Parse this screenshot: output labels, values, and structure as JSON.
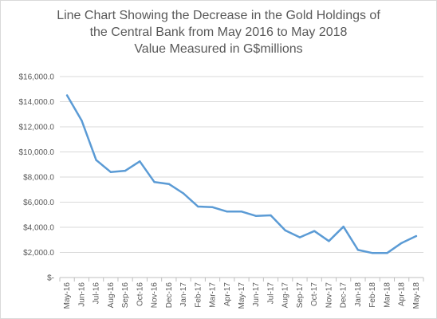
{
  "chart_data": {
    "type": "line",
    "title_lines": [
      "Line Chart Showing the Decrease in the Gold Holdings of",
      "the Central Bank from May 2016 to May 2018",
      "Value Measured in G$millions"
    ],
    "categories": [
      "May-16",
      "Jun-16",
      "Jul-16",
      "Aug-16",
      "Sep-16",
      "Oct-16",
      "Nov-16",
      "Dec-16",
      "Jan-17",
      "Feb-17",
      "Mar-17",
      "Apr-17",
      "May-17",
      "Jun-17",
      "Jul-17",
      "Aug-17",
      "Sep-17",
      "Oct-17",
      "Nov-17",
      "Dec-17",
      "Jan-18",
      "Feb-18",
      "Mar-18",
      "Apr-18",
      "May-18"
    ],
    "series": [
      {
        "values": [
          14500,
          12500,
          9350,
          8400,
          8500,
          9250,
          7600,
          7450,
          6700,
          5650,
          5600,
          5250,
          5250,
          4900,
          4950,
          3750,
          3200,
          3700,
          2900,
          4050,
          2200,
          1950,
          1950,
          2750,
          3300
        ],
        "color": "#5b9bd5"
      }
    ],
    "y_ticks": [
      "$-",
      "$2,000.0",
      "$4,000.0",
      "$6,000.0",
      "$8,000.0",
      "$10,000.0",
      "$12,000.0",
      "$14,000.0",
      "$16,000.0"
    ],
    "ylim": [
      0,
      16000
    ],
    "y_step": 2000,
    "grid": true,
    "legend": "none",
    "gridline_color": "#d9d9d9",
    "axis_color": "#bfbfbf"
  }
}
